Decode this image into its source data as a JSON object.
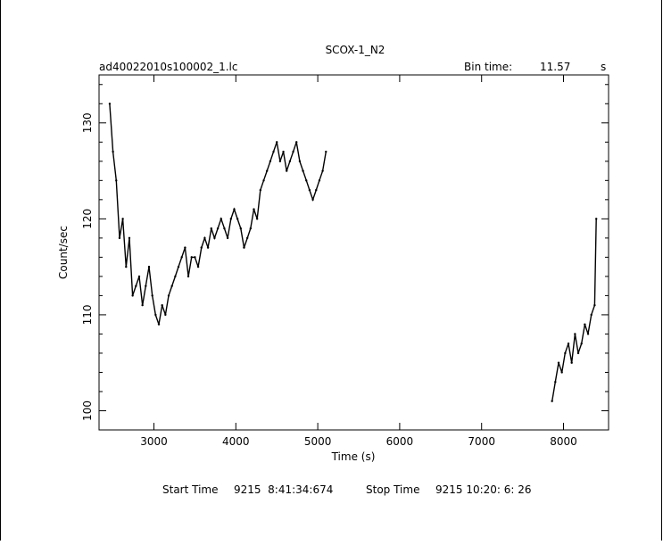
{
  "chart_data": {
    "type": "line",
    "title": "SCOX-1_N2",
    "file_name": "ad40022010s100002_1.lc",
    "bin_time_label": "Bin time:",
    "bin_time_value": "11.57",
    "bin_time_unit": "s",
    "xlabel": "Time (s)",
    "ylabel": "Count/sec",
    "xlim": [
      2330,
      8550
    ],
    "ylim": [
      98.0,
      135.0
    ],
    "x_ticks": [
      3000,
      4000,
      5000,
      6000,
      7000,
      8000
    ],
    "x_tick_labels": [
      "3000",
      "4000",
      "5000",
      "6000",
      "7000",
      "8000"
    ],
    "y_ticks": [
      100,
      110,
      120,
      130
    ],
    "y_tick_labels": [
      "100",
      "110",
      "120",
      "130"
    ],
    "grid": false,
    "segments": [
      {
        "x": [
          2460,
          2500,
          2540,
          2580,
          2620,
          2660,
          2700,
          2740,
          2780,
          2820,
          2860,
          2900,
          2940,
          2980,
          3020,
          3060,
          3100,
          3140,
          3180,
          3220,
          3260,
          3300,
          3340,
          3380,
          3420,
          3460,
          3500,
          3540,
          3580,
          3620,
          3660,
          3700,
          3740,
          3780,
          3820,
          3860,
          3900,
          3940,
          3980,
          4020,
          4060,
          4100,
          4140,
          4180,
          4220,
          4260,
          4300,
          4340,
          4380,
          4420,
          4460,
          4500,
          4540,
          4580,
          4620,
          4660,
          4700,
          4740,
          4780,
          4820,
          4860,
          4900,
          4940,
          4980,
          5020,
          5060,
          5100
        ],
        "y": [
          132,
          127,
          124,
          118,
          120,
          115,
          118,
          112,
          113,
          114,
          111,
          113,
          115,
          112,
          110,
          109,
          111,
          110,
          112,
          113,
          114,
          115,
          116,
          117,
          114,
          116,
          116,
          115,
          117,
          118,
          117,
          119,
          118,
          119,
          120,
          119,
          118,
          120,
          121,
          120,
          119,
          117,
          118,
          119,
          121,
          120,
          123,
          124,
          125,
          126,
          127,
          128,
          126,
          127,
          125,
          126,
          127,
          128,
          126,
          125,
          124,
          123,
          122,
          123,
          124,
          125,
          127
        ]
      },
      {
        "x": [
          7860,
          7900,
          7940,
          7980,
          8020,
          8060,
          8100,
          8140,
          8180,
          8220,
          8260,
          8300,
          8340,
          8380,
          8400
        ],
        "y": [
          101,
          103,
          105,
          104,
          106,
          107,
          105,
          108,
          106,
          107,
          109,
          108,
          110,
          111,
          120
        ]
      }
    ],
    "footer": {
      "start_label": "Start Time",
      "start_value": "9215  8:41:34:674",
      "stop_label": "Stop Time",
      "stop_value": "9215 10:20: 6: 26"
    }
  }
}
